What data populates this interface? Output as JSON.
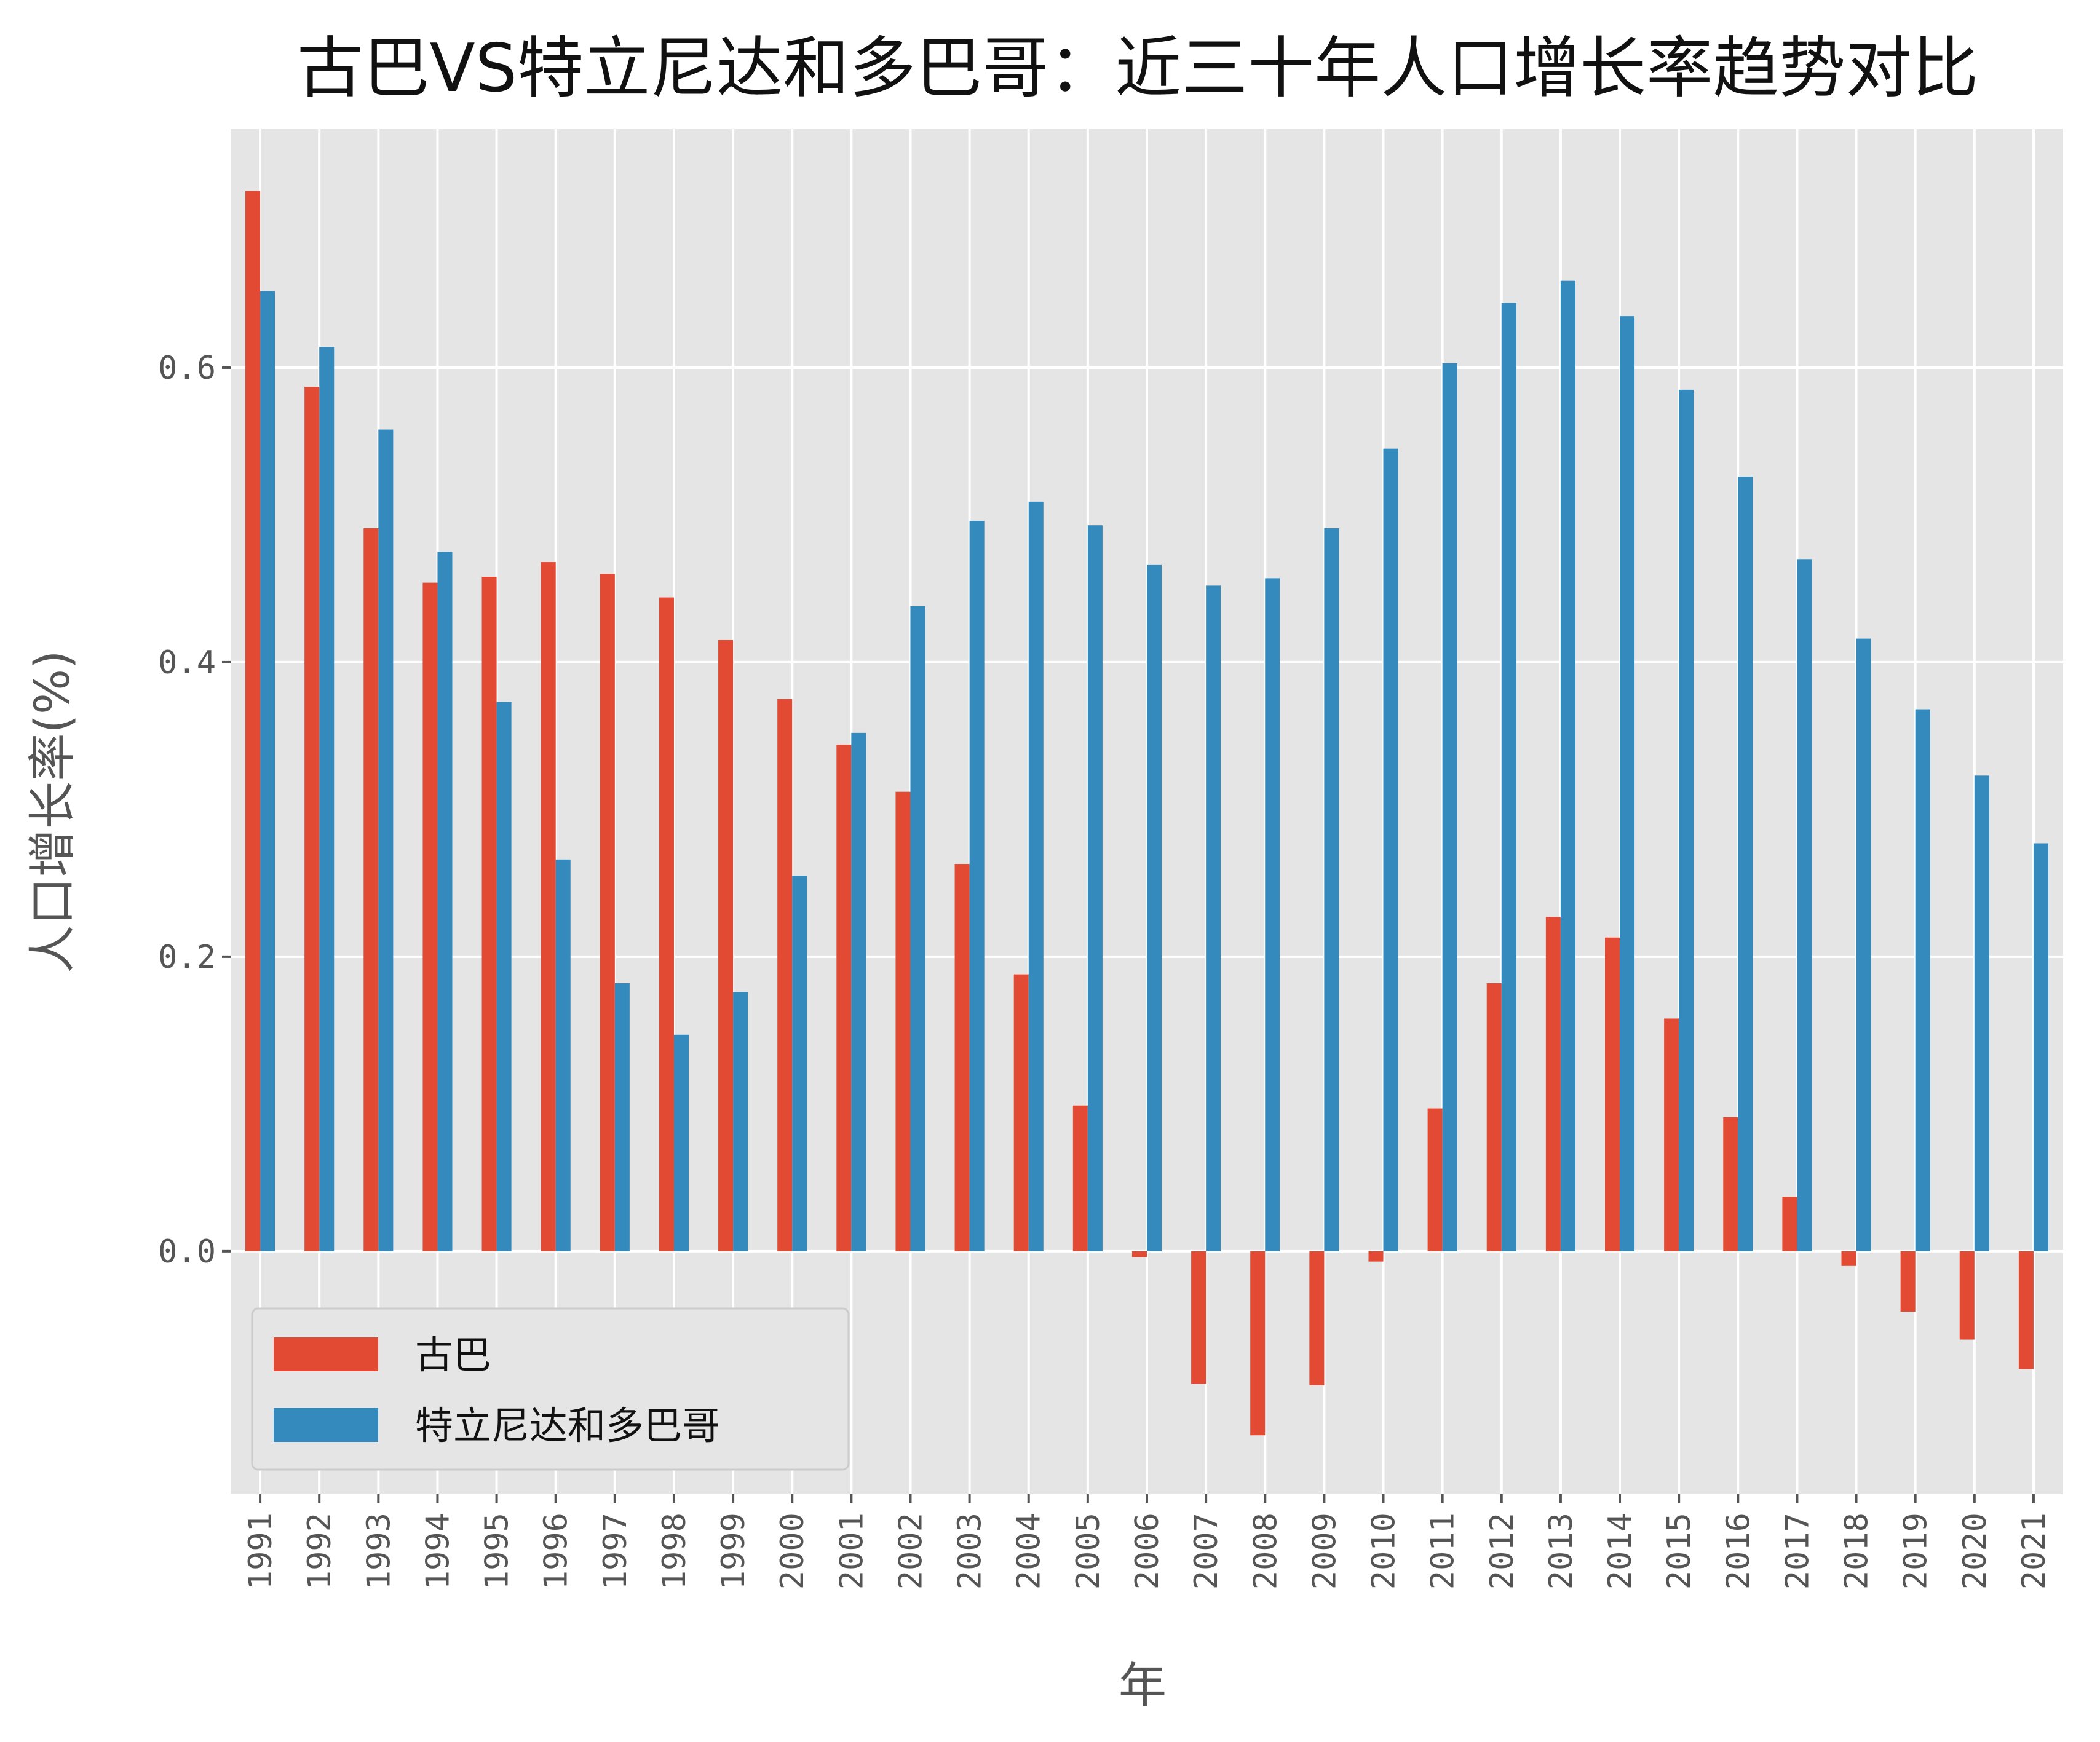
{
  "chart_data": {
    "type": "bar",
    "title": "古巴VS特立尼达和多巴哥：近三十年人口增长率趋势对比",
    "xlabel": "年",
    "ylabel": "人口增长率(%)",
    "categories": [
      "1991",
      "1992",
      "1993",
      "1994",
      "1995",
      "1996",
      "1997",
      "1998",
      "1999",
      "2000",
      "2001",
      "2002",
      "2003",
      "2004",
      "2005",
      "2006",
      "2007",
      "2008",
      "2009",
      "2010",
      "2011",
      "2012",
      "2013",
      "2014",
      "2015",
      "2016",
      "2017",
      "2018",
      "2019",
      "2020",
      "2021"
    ],
    "series": [
      {
        "name": "古巴",
        "color": "#E24A33",
        "values": [
          0.72,
          0.587,
          0.491,
          0.454,
          0.458,
          0.468,
          0.46,
          0.444,
          0.415,
          0.375,
          0.344,
          0.312,
          0.263,
          0.188,
          0.099,
          -0.004,
          -0.09,
          -0.125,
          -0.091,
          -0.007,
          0.097,
          0.182,
          0.227,
          0.213,
          0.158,
          0.091,
          0.037,
          -0.01,
          -0.041,
          -0.06,
          -0.08
        ]
      },
      {
        "name": "特立尼达和多巴哥",
        "color": "#348ABD",
        "values": [
          0.652,
          0.614,
          0.558,
          0.475,
          0.373,
          0.266,
          0.182,
          0.147,
          0.176,
          0.255,
          0.352,
          0.438,
          0.496,
          0.509,
          0.493,
          0.466,
          0.452,
          0.457,
          0.491,
          0.545,
          0.603,
          0.644,
          0.659,
          0.635,
          0.585,
          0.526,
          0.47,
          0.416,
          0.368,
          0.323,
          0.277
        ]
      }
    ],
    "yticks": [
      0.0,
      0.2,
      0.4,
      0.6
    ],
    "ytick_labels": [
      "0.0",
      "0.2",
      "0.4",
      "0.6"
    ],
    "ylim": [
      -0.165,
      0.762
    ],
    "grid": true,
    "legend_position": "lower-left",
    "colors": {
      "plot_background": "#E5E5E5",
      "grid": "#FFFFFF",
      "tick_text": "#555555"
    }
  }
}
